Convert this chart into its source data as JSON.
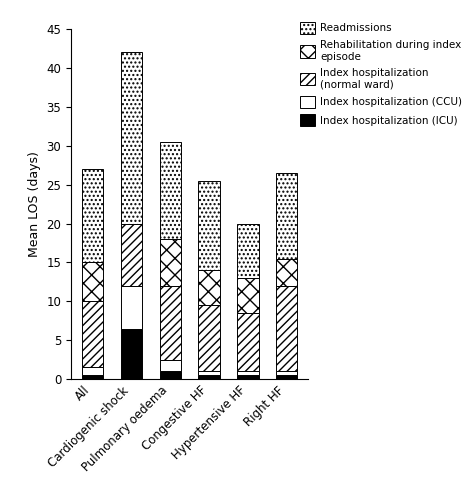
{
  "categories": [
    "All",
    "Cardiogenic shock",
    "Pulmonary oedema",
    "Congestive HF",
    "Hypertensive HF",
    "Right HF"
  ],
  "series": {
    "Index hospitalization (ICU)": [
      0.5,
      6.5,
      1.0,
      0.5,
      0.5,
      0.5
    ],
    "Index hospitalization (CCU)": [
      1.0,
      5.5,
      1.5,
      0.5,
      0.5,
      0.5
    ],
    "Index hospitalization\n(normal ward)": [
      8.5,
      8.0,
      9.5,
      8.5,
      7.5,
      11.0
    ],
    "Rehabilitation during index\nepisode": [
      5.0,
      0.0,
      6.0,
      4.5,
      4.5,
      3.5
    ],
    "Readmissions": [
      12.0,
      22.0,
      12.5,
      11.5,
      7.0,
      11.0
    ]
  },
  "bar_width": 0.55,
  "ylim": [
    0,
    45
  ],
  "yticks": [
    0,
    5,
    10,
    15,
    20,
    25,
    30,
    35,
    40,
    45
  ],
  "ylabel": "Mean LOS (days)",
  "legend_labels_ordered": [
    "Readmissions",
    "Rehabilitation during index\nepisode",
    "Index hospitalization\n(normal ward)",
    "Index hospitalization (CCU)",
    "Index hospitalization (ICU)"
  ],
  "fig_width": 4.74,
  "fig_height": 4.86
}
